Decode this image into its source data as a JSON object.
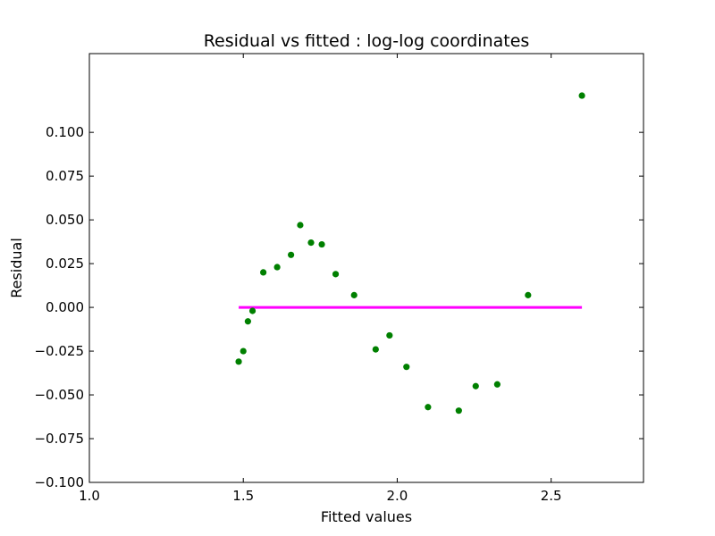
{
  "chart_data": {
    "type": "scatter",
    "title": "Residual vs fitted : log-log coordinates",
    "xlabel": "Fitted values",
    "ylabel": "Residual",
    "xlim": [
      1.0,
      2.8
    ],
    "ylim": [
      -0.1,
      0.145
    ],
    "x_ticks": [
      1.0,
      1.5,
      2.0,
      2.5
    ],
    "x_tick_labels": [
      "1.0",
      "1.5",
      "2.0",
      "2.5"
    ],
    "y_ticks": [
      -0.1,
      -0.075,
      -0.05,
      -0.025,
      0.0,
      0.025,
      0.05,
      0.075,
      0.1
    ],
    "y_tick_labels": [
      "−0.100",
      "−0.075",
      "−0.050",
      "−0.025",
      "0.000",
      "0.025",
      "0.050",
      "0.075",
      "0.100"
    ],
    "grid": false,
    "series": [
      {
        "type": "scatter",
        "color": "#008000",
        "points": [
          {
            "x": 1.485,
            "y": -0.031
          },
          {
            "x": 1.5,
            "y": -0.025
          },
          {
            "x": 1.515,
            "y": -0.008
          },
          {
            "x": 1.53,
            "y": -0.002
          },
          {
            "x": 1.565,
            "y": 0.02
          },
          {
            "x": 1.61,
            "y": 0.023
          },
          {
            "x": 1.655,
            "y": 0.03
          },
          {
            "x": 1.685,
            "y": 0.047
          },
          {
            "x": 1.72,
            "y": 0.037
          },
          {
            "x": 1.755,
            "y": 0.036
          },
          {
            "x": 1.8,
            "y": 0.019
          },
          {
            "x": 1.86,
            "y": 0.007
          },
          {
            "x": 1.93,
            "y": -0.024
          },
          {
            "x": 1.975,
            "y": -0.016
          },
          {
            "x": 2.03,
            "y": -0.034
          },
          {
            "x": 2.1,
            "y": -0.057
          },
          {
            "x": 2.2,
            "y": -0.059
          },
          {
            "x": 2.255,
            "y": -0.045
          },
          {
            "x": 2.325,
            "y": -0.044
          },
          {
            "x": 2.425,
            "y": 0.007
          },
          {
            "x": 2.6,
            "y": 0.121
          }
        ]
      },
      {
        "type": "line",
        "color": "#ff00ff",
        "points": [
          {
            "x": 1.485,
            "y": 0.0
          },
          {
            "x": 2.6,
            "y": 0.0
          }
        ]
      }
    ]
  }
}
